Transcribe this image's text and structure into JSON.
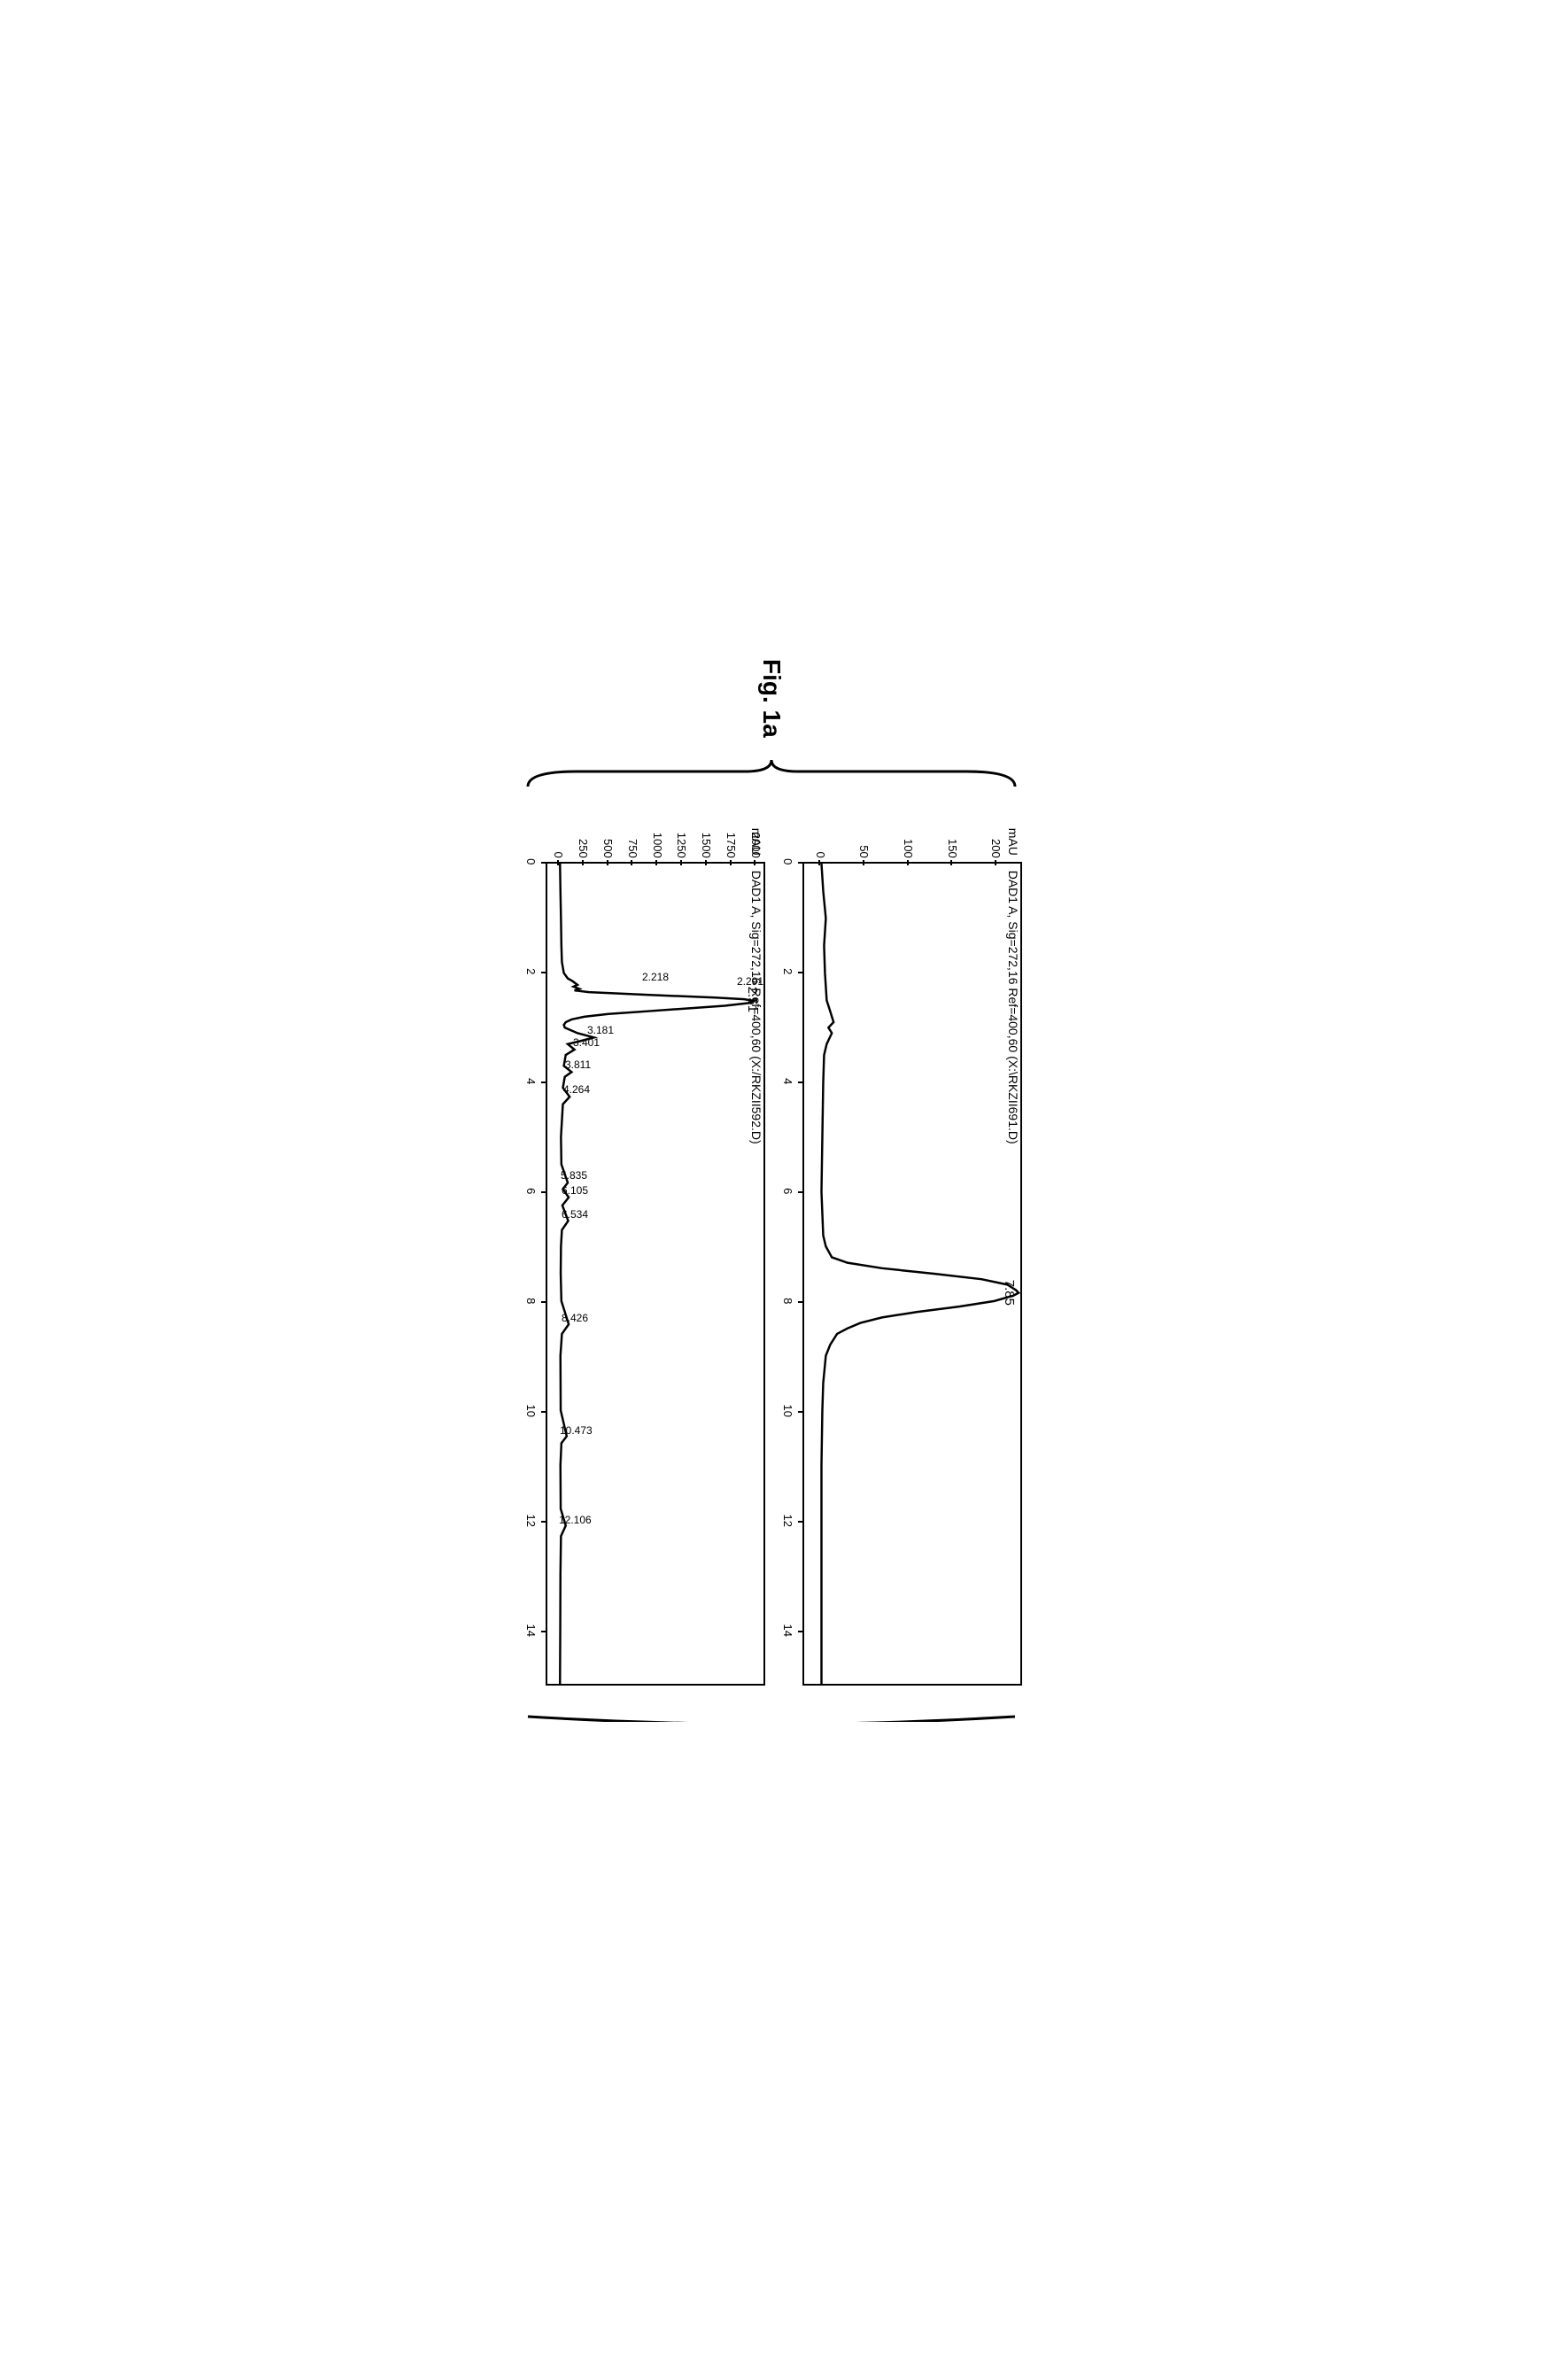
{
  "figure_label": "Fig. 1a",
  "chart_a": {
    "type": "line",
    "title": "DAD1 A, Sig=272,16 Ref=400,60 (X:\\RKZII691.D)",
    "y_unit": "mAU",
    "xlim": [
      0,
      15
    ],
    "ylim": [
      -20,
      230
    ],
    "xticks": [
      0,
      2,
      4,
      6,
      8,
      10,
      12,
      14
    ],
    "yticks": [
      0,
      50,
      100,
      150,
      200
    ],
    "main_peak_label": "7.85",
    "main_peak_x": 7.85,
    "line_color": "#000000",
    "line_width": 2.5,
    "background_color": "#ffffff",
    "data": [
      [
        0,
        0
      ],
      [
        0.5,
        2
      ],
      [
        1,
        5
      ],
      [
        1.5,
        3
      ],
      [
        2,
        4
      ],
      [
        2.5,
        6
      ],
      [
        2.7,
        10
      ],
      [
        2.9,
        14
      ],
      [
        3.0,
        8
      ],
      [
        3.1,
        12
      ],
      [
        3.3,
        6
      ],
      [
        3.5,
        3
      ],
      [
        4,
        2
      ],
      [
        5,
        1
      ],
      [
        6,
        0
      ],
      [
        6.8,
        2
      ],
      [
        7.0,
        5
      ],
      [
        7.2,
        12
      ],
      [
        7.3,
        30
      ],
      [
        7.4,
        70
      ],
      [
        7.5,
        130
      ],
      [
        7.6,
        185
      ],
      [
        7.7,
        215
      ],
      [
        7.8,
        225
      ],
      [
        7.85,
        228
      ],
      [
        7.9,
        222
      ],
      [
        8.0,
        200
      ],
      [
        8.1,
        160
      ],
      [
        8.2,
        110
      ],
      [
        8.3,
        70
      ],
      [
        8.4,
        45
      ],
      [
        8.5,
        30
      ],
      [
        8.6,
        18
      ],
      [
        8.8,
        10
      ],
      [
        9.0,
        5
      ],
      [
        9.5,
        2
      ],
      [
        10,
        1
      ],
      [
        11,
        0
      ],
      [
        12,
        0
      ],
      [
        13,
        0
      ],
      [
        14,
        0
      ],
      [
        15,
        0
      ]
    ]
  },
  "chart_b": {
    "type": "line",
    "title": "DAD1 A, Sig=272,16 Ref=400,60 (X:/RKZII592.D)",
    "y_unit": "mAU",
    "xlim": [
      0,
      15
    ],
    "ylim": [
      -130,
      2100
    ],
    "xticks": [
      0,
      2,
      4,
      6,
      8,
      10,
      12,
      14
    ],
    "yticks": [
      0,
      250,
      500,
      750,
      1000,
      1250,
      1500,
      1750,
      2000
    ],
    "main_peak_label": "2.51",
    "main_peak_x": 2.51,
    "sub_peak_labels": [
      {
        "x": 2.218,
        "label": "2.218"
      },
      {
        "x": 2.291,
        "label": "2.291"
      },
      {
        "x": 3.181,
        "label": "3.181"
      },
      {
        "x": 3.401,
        "label": "3.401"
      },
      {
        "x": 3.811,
        "label": "3.811"
      },
      {
        "x": 4.264,
        "label": "4.264"
      },
      {
        "x": 5.835,
        "label": "5.835"
      },
      {
        "x": 6.105,
        "label": "6.105"
      },
      {
        "x": 6.534,
        "label": "6.534"
      },
      {
        "x": 8.426,
        "label": "8.426"
      },
      {
        "x": 10.473,
        "label": "10.473"
      },
      {
        "x": 12.106,
        "label": "12.106"
      }
    ],
    "line_color": "#000000",
    "line_width": 2.5,
    "background_color": "#ffffff",
    "data": [
      [
        0,
        0
      ],
      [
        0.5,
        5
      ],
      [
        1,
        10
      ],
      [
        1.5,
        15
      ],
      [
        1.8,
        20
      ],
      [
        2.0,
        40
      ],
      [
        2.1,
        80
      ],
      [
        2.15,
        130
      ],
      [
        2.218,
        180
      ],
      [
        2.25,
        140
      ],
      [
        2.291,
        200
      ],
      [
        2.32,
        150
      ],
      [
        2.35,
        300
      ],
      [
        2.4,
        900
      ],
      [
        2.45,
        1600
      ],
      [
        2.48,
        1900
      ],
      [
        2.51,
        2000
      ],
      [
        2.55,
        1950
      ],
      [
        2.6,
        1700
      ],
      [
        2.65,
        1300
      ],
      [
        2.7,
        900
      ],
      [
        2.75,
        500
      ],
      [
        2.8,
        250
      ],
      [
        2.85,
        120
      ],
      [
        2.9,
        60
      ],
      [
        2.95,
        40
      ],
      [
        3.0,
        50
      ],
      [
        3.1,
        180
      ],
      [
        3.181,
        350
      ],
      [
        3.25,
        200
      ],
      [
        3.3,
        80
      ],
      [
        3.401,
        150
      ],
      [
        3.5,
        60
      ],
      [
        3.7,
        40
      ],
      [
        3.811,
        120
      ],
      [
        3.9,
        50
      ],
      [
        4.1,
        30
      ],
      [
        4.264,
        100
      ],
      [
        4.4,
        30
      ],
      [
        5,
        10
      ],
      [
        5.5,
        15
      ],
      [
        5.835,
        80
      ],
      [
        5.95,
        30
      ],
      [
        6.105,
        90
      ],
      [
        6.25,
        25
      ],
      [
        6.534,
        85
      ],
      [
        6.7,
        20
      ],
      [
        7,
        10
      ],
      [
        7.5,
        8
      ],
      [
        8,
        15
      ],
      [
        8.426,
        90
      ],
      [
        8.6,
        20
      ],
      [
        9,
        5
      ],
      [
        10,
        8
      ],
      [
        10.473,
        70
      ],
      [
        10.6,
        15
      ],
      [
        11,
        5
      ],
      [
        11.8,
        8
      ],
      [
        12.106,
        60
      ],
      [
        12.3,
        10
      ],
      [
        13,
        5
      ],
      [
        14,
        3
      ],
      [
        15,
        0
      ]
    ]
  }
}
